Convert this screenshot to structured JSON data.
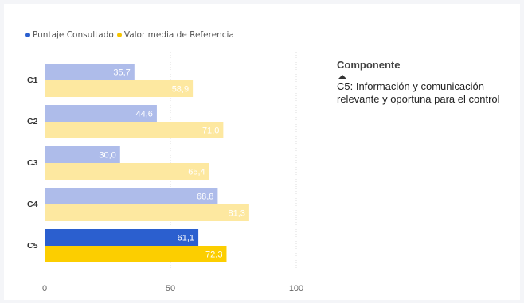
{
  "legend": [
    {
      "label": "Puntaje Consultado",
      "color": "#2b5fcf"
    },
    {
      "label": "Valor media de Referencia",
      "color": "#f5c400"
    }
  ],
  "side_panel": {
    "title": "Componente",
    "sort_icon": "triangle-up-icon",
    "selected_value": "C5: Información y comunicación relevante y oportuna para el control"
  },
  "colors": {
    "consultado": "#aebcea",
    "consultado_selected": "#2b5fcf",
    "referencia": "#fde8a0",
    "referencia_selected": "#fcce00"
  },
  "chart_data": {
    "type": "bar",
    "orientation": "horizontal",
    "categories": [
      "C1",
      "C2",
      "C3",
      "C4",
      "C5"
    ],
    "series": [
      {
        "name": "Puntaje Consultado",
        "values": [
          35.7,
          44.6,
          30.0,
          68.8,
          61.1
        ],
        "labels": [
          "35,7",
          "44,6",
          "30,0",
          "68,8",
          "61,1"
        ]
      },
      {
        "name": "Valor media de Referencia",
        "values": [
          58.9,
          71.0,
          65.4,
          81.3,
          72.3
        ],
        "labels": [
          "58,9",
          "71,0",
          "65,4",
          "81,3",
          "72,3"
        ]
      }
    ],
    "selected_category": "C5",
    "xlim": [
      0,
      100
    ],
    "xticks": [
      {
        "value": 0,
        "label": "0"
      },
      {
        "value": 50,
        "label": "50"
      },
      {
        "value": 100,
        "label": "100"
      }
    ],
    "grid": "vertical dotted",
    "legend_position": "top-left",
    "title": "",
    "xlabel": "",
    "ylabel": ""
  }
}
